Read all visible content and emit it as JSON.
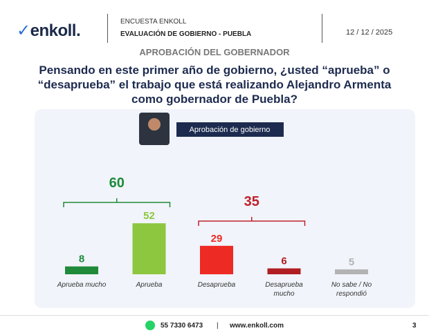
{
  "header": {
    "logo": "enkoll.",
    "survey": "ENCUESTA ENKOLL",
    "subtitle": "EVALUACIÓN DE GOBIERNO - PUEBLA",
    "date": "12 / 12 / 2025"
  },
  "section_title": "APROBACIÓN DEL GOBERNADOR",
  "question": "Pensando en este primer año de gobierno, ¿usted “aprueba” o “desaprueba” el trabajo que está realizando Alejandro Armenta como gobernador de Puebla?",
  "chart_data": {
    "type": "bar",
    "title": "Aprobación de gobierno",
    "categories": [
      "Aprueba mucho",
      "Aprueba",
      "Desaprueba",
      "Desaprueba mucho",
      "No sabe / No respondió"
    ],
    "values": [
      8,
      52,
      29,
      6,
      5
    ],
    "colors": [
      "#1f8a3a",
      "#8dc63f",
      "#ee2a24",
      "#b01e23",
      "#b3b3b3"
    ],
    "groups": [
      {
        "value": 60,
        "color": "#1f8a3a"
      },
      {
        "value": 35,
        "color": "#c0202a"
      }
    ]
  },
  "footer": {
    "phone": "55 7330 6473",
    "separator": "|",
    "website": "www.enkoll.com",
    "page": "3"
  }
}
